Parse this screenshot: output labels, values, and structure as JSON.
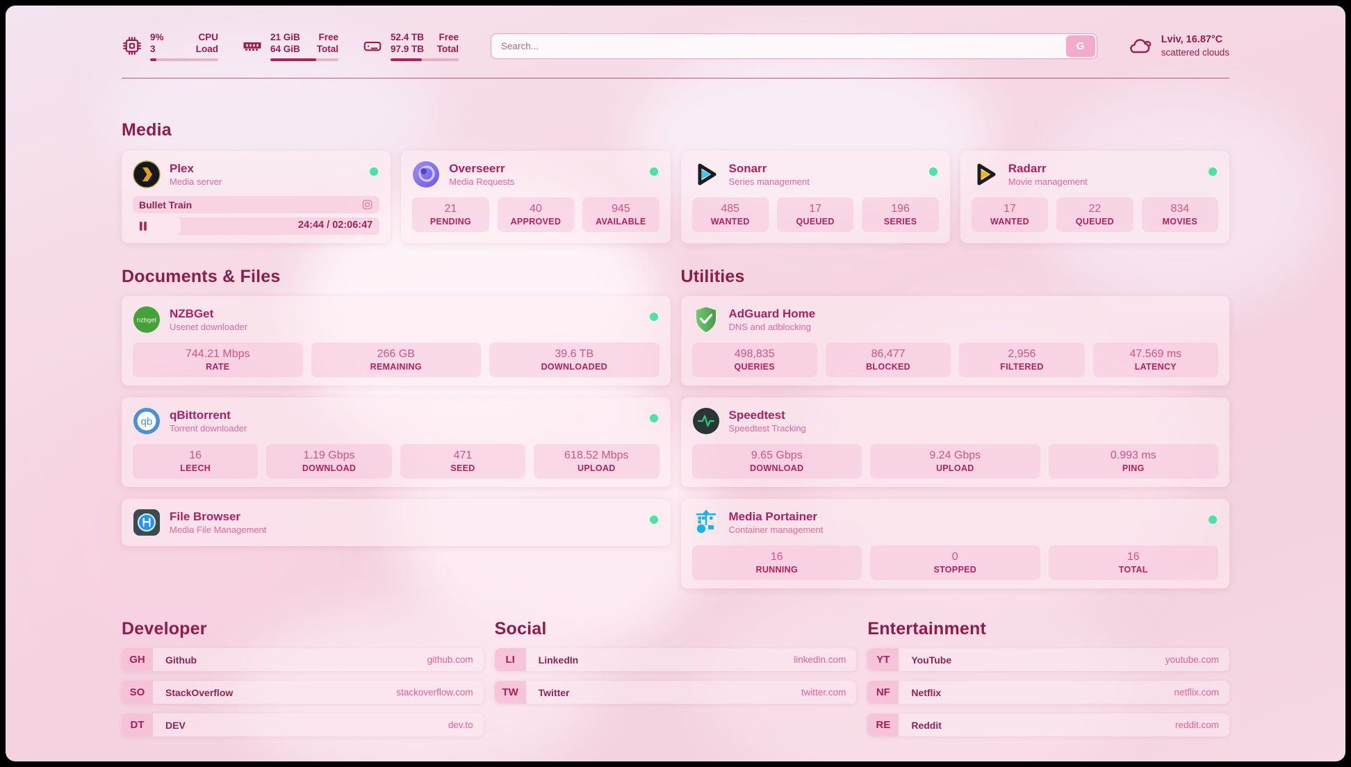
{
  "colors": {
    "accent": "#9a1b4f",
    "title": "#ad2163",
    "subtitle": "#ea66a0",
    "value": "#cf5583",
    "label": "#b51f5e",
    "link": "#ea5f9b",
    "name": "#8f2356",
    "status_green": "#4be3a3",
    "bar": "#a92355"
  },
  "topbar": {
    "cpu": {
      "percent": "9%",
      "load": "3",
      "label1": "CPU",
      "label2": "Load",
      "progress_pct": 9
    },
    "memory": {
      "free": "21 GiB",
      "total": "64 GiB",
      "label1": "Free",
      "label2": "Total",
      "progress_pct": 67
    },
    "disk": {
      "free": "52.4 TB",
      "total": "97.9 TB",
      "label1": "Free",
      "label2": "Total",
      "progress_pct": 46
    },
    "search": {
      "placeholder": "Search...",
      "engine_button": "G"
    },
    "weather": {
      "location": "Lviv, 16.87°C",
      "condition": "scattered clouds",
      "icon": "cloud-icon"
    }
  },
  "media": {
    "title": "Media",
    "plex": {
      "icon": "plex-icon",
      "title": "Plex",
      "subtitle": "Media server",
      "online": true,
      "now_playing": "Bullet Train",
      "time": "24:44 / 02:06:47",
      "progress_pct": 19.5
    },
    "overseerr": {
      "icon": "overseerr-icon",
      "title": "Overseerr",
      "subtitle": "Media Requests",
      "online": true,
      "stats": [
        {
          "value": "21",
          "label": "PENDING"
        },
        {
          "value": "40",
          "label": "APPROVED"
        },
        {
          "value": "945",
          "label": "AVAILABLE"
        }
      ]
    },
    "sonarr": {
      "icon": "sonarr-icon",
      "title": "Sonarr",
      "subtitle": "Series management",
      "online": true,
      "stats": [
        {
          "value": "485",
          "label": "WANTED"
        },
        {
          "value": "17",
          "label": "QUEUED"
        },
        {
          "value": "196",
          "label": "SERIES"
        }
      ]
    },
    "radarr": {
      "icon": "radarr-icon",
      "title": "Radarr",
      "subtitle": "Movie management",
      "online": true,
      "stats": [
        {
          "value": "17",
          "label": "WANTED"
        },
        {
          "value": "22",
          "label": "QUEUED"
        },
        {
          "value": "834",
          "label": "MOVIES"
        }
      ]
    }
  },
  "documents": {
    "title": "Documents & Files",
    "nzbget": {
      "icon": "nzbget-icon",
      "title": "NZBGet",
      "subtitle": "Usenet downloader",
      "online": true,
      "stats": [
        {
          "value": "744.21 Mbps",
          "label": "RATE"
        },
        {
          "value": "266 GB",
          "label": "REMAINING"
        },
        {
          "value": "39.6 TB",
          "label": "DOWNLOADED"
        }
      ]
    },
    "qbittorrent": {
      "icon": "qbittorrent-icon",
      "title": "qBittorrent",
      "subtitle": "Torrent downloader",
      "online": true,
      "stats": [
        {
          "value": "16",
          "label": "LEECH"
        },
        {
          "value": "1.19 Gbps",
          "label": "DOWNLOAD"
        },
        {
          "value": "471",
          "label": "SEED"
        },
        {
          "value": "618.52 Mbps",
          "label": "UPLOAD"
        }
      ]
    },
    "filebrowser": {
      "icon": "filebrowser-icon",
      "title": "File Browser",
      "subtitle": "Media File Management",
      "online": true
    }
  },
  "utilities": {
    "title": "Utilities",
    "adguard": {
      "icon": "adguard-icon",
      "title": "AdGuard Home",
      "subtitle": "DNS and adblocking",
      "online": false,
      "stats": [
        {
          "value": "498,835",
          "label": "QUERIES"
        },
        {
          "value": "86,477",
          "label": "BLOCKED"
        },
        {
          "value": "2,956",
          "label": "FILTERED"
        },
        {
          "value": "47.569 ms",
          "label": "LATENCY"
        }
      ]
    },
    "speedtest": {
      "icon": "speedtest-icon",
      "title": "Speedtest",
      "subtitle": "Speedtest Tracking",
      "online": false,
      "stats": [
        {
          "value": "9.65 Gbps",
          "label": "DOWNLOAD"
        },
        {
          "value": "9.24 Gbps",
          "label": "UPLOAD"
        },
        {
          "value": "0.993 ms",
          "label": "PING"
        }
      ]
    },
    "portainer": {
      "icon": "portainer-icon",
      "title": "Media Portainer",
      "subtitle": "Container management",
      "online": true,
      "stats": [
        {
          "value": "16",
          "label": "RUNNING"
        },
        {
          "value": "0",
          "label": "STOPPED"
        },
        {
          "value": "16",
          "label": "TOTAL"
        }
      ]
    }
  },
  "developer": {
    "title": "Developer",
    "bookmarks": [
      {
        "abbr": "GH",
        "name": "Github",
        "url": "github.com"
      },
      {
        "abbr": "SO",
        "name": "StackOverflow",
        "url": "stackoverflow.com"
      },
      {
        "abbr": "DT",
        "name": "DEV",
        "url": "dev.to"
      }
    ]
  },
  "social": {
    "title": "Social",
    "bookmarks": [
      {
        "abbr": "LI",
        "name": "LinkedIn",
        "url": "linkedin.com"
      },
      {
        "abbr": "TW",
        "name": "Twitter",
        "url": "twitter.com"
      }
    ]
  },
  "entertainment": {
    "title": "Entertainment",
    "bookmarks": [
      {
        "abbr": "YT",
        "name": "YouTube",
        "url": "youtube.com"
      },
      {
        "abbr": "NF",
        "name": "Netflix",
        "url": "netflix.com"
      },
      {
        "abbr": "RE",
        "name": "Reddit",
        "url": "reddit.com"
      }
    ]
  }
}
